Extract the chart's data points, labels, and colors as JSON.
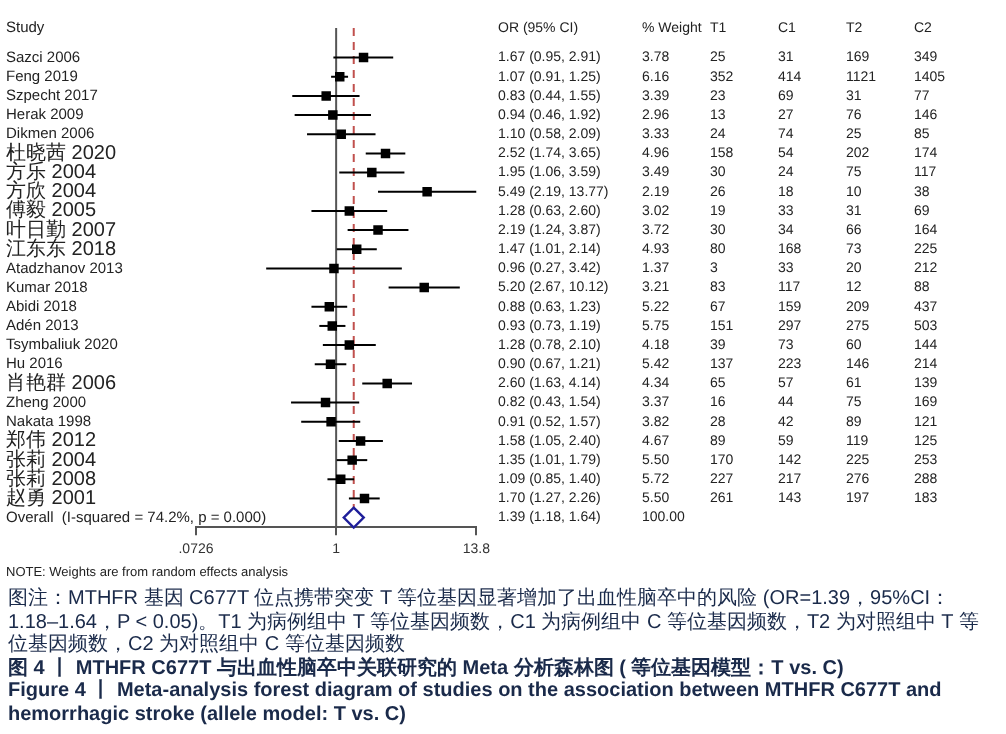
{
  "chart_data": [
    {
      "type": "scatter",
      "orientation": "horizontal",
      "ylabel": "Study",
      "categories": [
        "Sazci 2006",
        "Feng 2019",
        "Szpecht 2017",
        "Herak 2009",
        "Dikmen 2006",
        "杜晓茜 2020",
        "方乐 2004",
        "方欣 2004",
        "傅毅 2005",
        "叶日勤 2007",
        "江东东 2018",
        "Atadzhanov 2013",
        "Kumar 2018",
        "Abidi 2018",
        "Adén 2013",
        "Tsymbaliuk 2020",
        "Hu 2016",
        "肖艳群 2006",
        "Zheng 2000",
        "Nakata 1998",
        "郑伟 2012",
        "张莉 2004",
        "张莉 2008",
        "赵勇 2001",
        "Overall  (I-squared = 74.2%, p = 0.000)"
      ],
      "series": [
        {
          "type": "scatter",
          "marker": "square",
          "color": "#000000",
          "values": [
            1.67,
            1.07,
            0.83,
            0.94,
            1.1,
            2.52,
            1.95,
            5.49,
            1.28,
            2.19,
            1.47,
            0.96,
            5.2,
            0.88,
            0.93,
            1.28,
            0.9,
            2.6,
            0.82,
            0.91,
            1.58,
            1.35,
            1.09,
            1.7,
            null
          ],
          "errors": [
            [
              0.95,
              2.91
            ],
            [
              0.91,
              1.25
            ],
            [
              0.44,
              1.55
            ],
            [
              0.46,
              1.92
            ],
            [
              0.58,
              2.09
            ],
            [
              1.74,
              3.65
            ],
            [
              1.06,
              3.59
            ],
            [
              2.19,
              13.77
            ],
            [
              0.63,
              2.6
            ],
            [
              1.24,
              3.87
            ],
            [
              1.01,
              2.14
            ],
            [
              0.27,
              3.42
            ],
            [
              2.67,
              10.12
            ],
            [
              0.63,
              1.23
            ],
            [
              0.73,
              1.19
            ],
            [
              0.78,
              2.1
            ],
            [
              0.67,
              1.21
            ],
            [
              1.63,
              4.14
            ],
            [
              0.43,
              1.54
            ],
            [
              0.52,
              1.57
            ],
            [
              1.05,
              2.4
            ],
            [
              1.01,
              1.79
            ],
            [
              0.85,
              1.4
            ],
            [
              1.27,
              2.26
            ],
            null
          ]
        },
        {
          "type": "scatter",
          "marker": "diamond",
          "color": "#1f1f9a",
          "values": [
            null,
            null,
            null,
            null,
            null,
            null,
            null,
            null,
            null,
            null,
            null,
            null,
            null,
            null,
            null,
            null,
            null,
            null,
            null,
            null,
            null,
            null,
            null,
            null,
            1.39
          ],
          "errors": [
            null,
            null,
            null,
            null,
            null,
            null,
            null,
            null,
            null,
            null,
            null,
            null,
            null,
            null,
            null,
            null,
            null,
            null,
            null,
            null,
            null,
            null,
            null,
            null,
            [
              1.18,
              1.64
            ]
          ]
        }
      ],
      "log": "x",
      "xlim": [
        0.0726,
        13.8
      ],
      "xticks": [
        {
          "value": 0.0726,
          "label": ".0726"
        },
        1,
        {
          "value": 13.8,
          "label": "13.8"
        }
      ],
      "ref_lines": [
        {
          "axis": "x",
          "value": 1,
          "color": "#555555",
          "line_style": "solid"
        },
        {
          "axis": "x",
          "value": 1.39,
          "color": "#c0504d",
          "line_style": "dashed"
        }
      ],
      "grid": false,
      "legend": false,
      "annotations": [
        "NOTE: Weights are from random effects analysis"
      ]
    },
    {
      "type": "other",
      "annotations": [
        "OR (95% CI)",
        "1.67 (0.95, 2.91)",
        "1.07 (0.91, 1.25)",
        "0.83 (0.44, 1.55)",
        "0.94 (0.46, 1.92)",
        "1.10 (0.58, 2.09)",
        "2.52 (1.74, 3.65)",
        "1.95 (1.06, 3.59)",
        "5.49 (2.19, 13.77)",
        "1.28 (0.63, 2.60)",
        "2.19 (1.24, 3.87)",
        "1.47 (1.01, 2.14)",
        "0.96 (0.27, 3.42)",
        "5.20 (2.67, 10.12)",
        "0.88 (0.63, 1.23)",
        "0.93 (0.73, 1.19)",
        "1.28 (0.78, 2.10)",
        "0.90 (0.67, 1.21)",
        "2.60 (1.63, 4.14)",
        "0.82 (0.43, 1.54)",
        "0.91 (0.52, 1.57)",
        "1.58 (1.05, 2.40)",
        "1.35 (1.01, 1.79)",
        "1.09 (0.85, 1.40)",
        "1.70 (1.27, 2.26)",
        "1.39 (1.18, 1.64)"
      ]
    },
    {
      "type": "heatmap",
      "categories": [
        "% Weight",
        "T1",
        "C1",
        "T2",
        "C2"
      ],
      "y_categories": [
        null,
        null,
        null,
        null,
        null,
        null,
        null,
        null,
        null,
        null,
        null,
        null,
        null,
        null,
        null,
        null,
        null,
        null,
        null,
        null,
        null,
        null,
        null,
        null,
        null
      ],
      "cells": [
        [
          3.78,
          25,
          31,
          169,
          349
        ],
        [
          6.16,
          352,
          414,
          1121,
          1405
        ],
        [
          3.39,
          23,
          69,
          31,
          77
        ],
        [
          2.96,
          13,
          27,
          76,
          146
        ],
        [
          3.33,
          24,
          74,
          25,
          85
        ],
        [
          4.96,
          158,
          54,
          202,
          174
        ],
        [
          3.49,
          30,
          24,
          75,
          117
        ],
        [
          2.19,
          26,
          18,
          10,
          38
        ],
        [
          3.02,
          19,
          33,
          31,
          69
        ],
        [
          3.72,
          30,
          34,
          66,
          164
        ],
        [
          4.93,
          80,
          168,
          73,
          225
        ],
        [
          1.37,
          3,
          33,
          20,
          212
        ],
        [
          3.21,
          83,
          117,
          12,
          88
        ],
        [
          5.22,
          67,
          159,
          209,
          437
        ],
        [
          5.75,
          151,
          297,
          275,
          503
        ],
        [
          4.18,
          39,
          73,
          60,
          144
        ],
        [
          5.42,
          137,
          223,
          146,
          214
        ],
        [
          4.34,
          65,
          57,
          61,
          139
        ],
        [
          3.37,
          16,
          44,
          75,
          169
        ],
        [
          3.82,
          28,
          42,
          89,
          121
        ],
        [
          4.67,
          89,
          59,
          119,
          125
        ],
        [
          5.5,
          170,
          142,
          225,
          253
        ],
        [
          5.72,
          227,
          217,
          276,
          288
        ],
        [
          5.5,
          261,
          143,
          197,
          183
        ],
        [
          100,
          null,
          null,
          null,
          null
        ]
      ],
      "cell_labels": [
        [
          "3.78",
          "25",
          "31",
          "169",
          "349"
        ],
        [
          "6.16",
          "352",
          "414",
          "1121",
          "1405"
        ],
        [
          "3.39",
          "23",
          "69",
          "31",
          "77"
        ],
        [
          "2.96",
          "13",
          "27",
          "76",
          "146"
        ],
        [
          "3.33",
          "24",
          "74",
          "25",
          "85"
        ],
        [
          "4.96",
          "158",
          "54",
          "202",
          "174"
        ],
        [
          "3.49",
          "30",
          "24",
          "75",
          "117"
        ],
        [
          "2.19",
          "26",
          "18",
          "10",
          "38"
        ],
        [
          "3.02",
          "19",
          "33",
          "31",
          "69"
        ],
        [
          "3.72",
          "30",
          "34",
          "66",
          "164"
        ],
        [
          "4.93",
          "80",
          "168",
          "73",
          "225"
        ],
        [
          "1.37",
          "3",
          "33",
          "20",
          "212"
        ],
        [
          "3.21",
          "83",
          "117",
          "12",
          "88"
        ],
        [
          "5.22",
          "67",
          "159",
          "209",
          "437"
        ],
        [
          "5.75",
          "151",
          "297",
          "275",
          "503"
        ],
        [
          "4.18",
          "39",
          "73",
          "60",
          "144"
        ],
        [
          "5.42",
          "137",
          "223",
          "146",
          "214"
        ],
        [
          "4.34",
          "65",
          "57",
          "61",
          "139"
        ],
        [
          "3.37",
          "16",
          "44",
          "75",
          "169"
        ],
        [
          "3.82",
          "28",
          "42",
          "89",
          "121"
        ],
        [
          "4.67",
          "89",
          "59",
          "119",
          "125"
        ],
        [
          "5.50",
          "170",
          "142",
          "225",
          "253"
        ],
        [
          "5.72",
          "227",
          "217",
          "276",
          "288"
        ],
        [
          "5.50",
          "261",
          "143",
          "197",
          "183"
        ],
        [
          "100.00",
          null,
          null,
          null,
          null
        ]
      ],
      "annotations": [
        "图注：MTHFR 基因 C677T 位点携带突变 T 等位基因显著增加了出血性脑卒中的风险 (OR=1.39，95%CI：1.18–1.64，P < 0.05)。T1 为病例组中 T 等位基因频数，C1 为病例组中 C 等位基因频数，T2 为对照组中 T 等位基因频数，C2 为对照组中 C 等位基因频数",
        "图 4 丨 MTHFR C677T 与出血性脑卒中关联研究的 Meta 分析森林图 ( 等位基因模型：T vs. C)",
        "Figure 4 丨 Meta-analysis forest diagram of studies on the association between MTHFR C677T and hemorrhagic stroke (allele model: T vs. C)"
      ]
    }
  ]
}
